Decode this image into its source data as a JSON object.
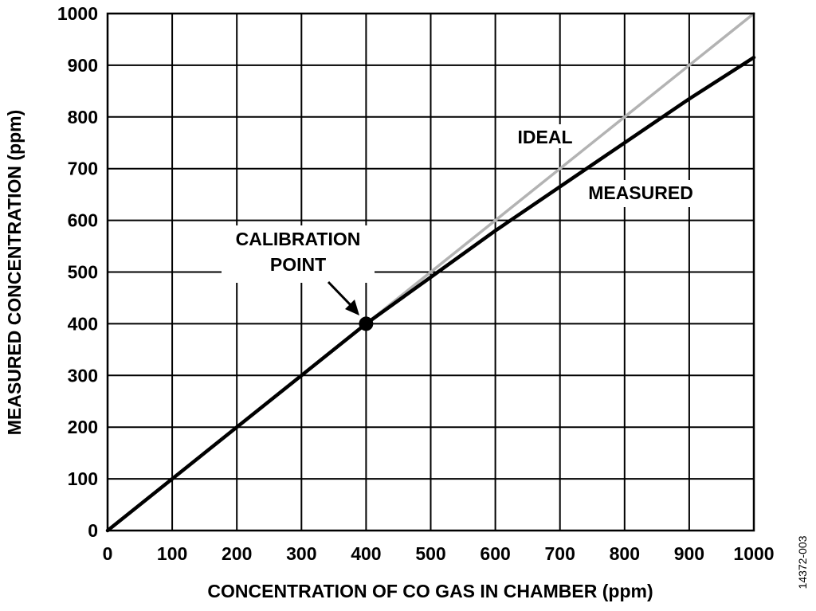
{
  "chart_data": {
    "type": "line",
    "xlabel": "CONCENTRATION OF CO GAS IN CHAMBER (ppm)",
    "ylabel": "MEASURED CONCENTRATION (ppm)",
    "xlim": [
      0,
      1000
    ],
    "ylim": [
      0,
      1000
    ],
    "xticks": [
      0,
      100,
      200,
      300,
      400,
      500,
      600,
      700,
      800,
      900,
      1000
    ],
    "yticks": [
      0,
      100,
      200,
      300,
      400,
      500,
      600,
      700,
      800,
      900,
      1000
    ],
    "xtick_labels": [
      "0",
      "100",
      "200",
      "300",
      "400",
      "500",
      "600",
      "700",
      "800",
      "900",
      "1000"
    ],
    "ytick_labels": [
      "0",
      "100",
      "200",
      "300",
      "400",
      "500",
      "600",
      "700",
      "800",
      "900",
      "1000"
    ],
    "grid": true,
    "series": [
      {
        "name": "IDEAL",
        "color": "#b3b3b3",
        "x": [
          0,
          1000
        ],
        "y": [
          0,
          1000
        ]
      },
      {
        "name": "MEASURED",
        "color": "#000000",
        "x": [
          0,
          400,
          500,
          600,
          700,
          800,
          900,
          1000
        ],
        "y": [
          0,
          400,
          490,
          580,
          665,
          750,
          835,
          915
        ]
      }
    ],
    "calibration_point": {
      "x": 400,
      "y": 400
    },
    "annotations": {
      "ideal": "IDEAL",
      "measured": "MEASURED",
      "calibration_line1": "CALIBRATION",
      "calibration_line2": "POINT"
    }
  },
  "figure_id": "14372-003"
}
